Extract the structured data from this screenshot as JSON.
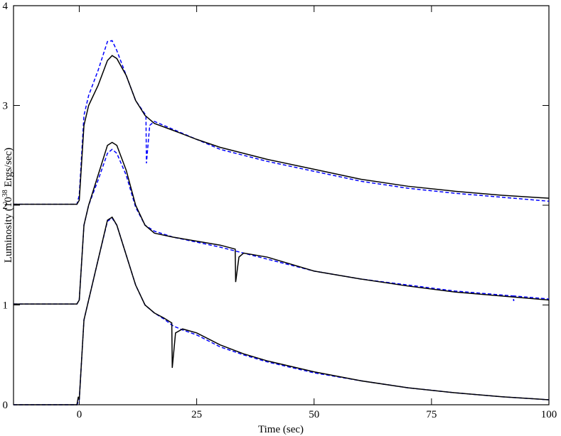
{
  "chart_data": {
    "type": "line",
    "xlabel": "Time (sec)",
    "ylabel_parts": [
      "Luminosity (10",
      "38",
      " Ergs/sec)"
    ],
    "xlim": [
      -14,
      100
    ],
    "ylim": [
      0,
      4
    ],
    "xticks": [
      0,
      25,
      50,
      75,
      100
    ],
    "yticks": [
      0,
      1,
      2,
      3,
      4
    ],
    "series": [
      {
        "color": "#0000ff",
        "dash": true,
        "x": [
          -14,
          -0.5,
          0,
          1,
          2,
          4,
          6,
          7,
          8,
          10,
          12,
          14,
          16,
          18,
          20,
          22,
          25,
          30,
          35,
          40,
          50,
          60,
          70,
          80,
          90,
          100
        ],
        "values": [
          0,
          0,
          0.05,
          0.85,
          1.05,
          1.45,
          1.84,
          1.87,
          1.8,
          1.5,
          1.2,
          1.0,
          0.92,
          0.86,
          0.79,
          0.75,
          0.7,
          0.58,
          0.5,
          0.43,
          0.32,
          0.24,
          0.17,
          0.12,
          0.08,
          0.05
        ]
      },
      {
        "color": "#000000",
        "dash": false,
        "x": [
          -14,
          -0.5,
          -0.2,
          0,
          1,
          2,
          4,
          6,
          7,
          8,
          10,
          12,
          14,
          16,
          18,
          19.7,
          19.8,
          20.5,
          22,
          25,
          30,
          35,
          40,
          50,
          60,
          70,
          80,
          90,
          100
        ],
        "values": [
          0,
          0,
          0.08,
          0.05,
          0.85,
          1.05,
          1.45,
          1.85,
          1.88,
          1.8,
          1.5,
          1.2,
          1.0,
          0.92,
          0.87,
          0.82,
          0.37,
          0.72,
          0.76,
          0.72,
          0.6,
          0.51,
          0.44,
          0.33,
          0.24,
          0.17,
          0.12,
          0.08,
          0.05
        ]
      },
      {
        "color": "#0000ff",
        "dash": true,
        "x": [
          -14,
          -0.5,
          0,
          1,
          2,
          4,
          6,
          7,
          8,
          10,
          12,
          14,
          16,
          20,
          25,
          30,
          35,
          40,
          50,
          60,
          70,
          80,
          90,
          92.4,
          92.5,
          92.6,
          100
        ],
        "values": [
          1.01,
          1.01,
          1.05,
          1.8,
          2.0,
          2.25,
          2.52,
          2.56,
          2.52,
          2.3,
          1.98,
          1.8,
          1.74,
          1.68,
          1.63,
          1.58,
          1.52,
          1.46,
          1.34,
          1.26,
          1.2,
          1.14,
          1.1,
          1.09,
          1.04,
          1.09,
          1.06
        ]
      },
      {
        "color": "#000000",
        "dash": false,
        "x": [
          -14,
          -0.5,
          0,
          1,
          2,
          4,
          6,
          7,
          8,
          10,
          12,
          14,
          16,
          20,
          25,
          30,
          33.2,
          33.3,
          34,
          35,
          40,
          50,
          60,
          70,
          80,
          90,
          100
        ],
        "values": [
          1.01,
          1.01,
          1.05,
          1.8,
          2.0,
          2.3,
          2.6,
          2.63,
          2.6,
          2.35,
          2.0,
          1.8,
          1.72,
          1.68,
          1.64,
          1.6,
          1.56,
          1.23,
          1.48,
          1.52,
          1.48,
          1.34,
          1.26,
          1.19,
          1.13,
          1.09,
          1.05
        ]
      },
      {
        "color": "#0000ff",
        "dash": true,
        "x": [
          -14,
          -0.5,
          0,
          1,
          2,
          4,
          6,
          7,
          8,
          10,
          12,
          14.2,
          14.3,
          15,
          16,
          20,
          25,
          30,
          40,
          50,
          60,
          70,
          80,
          90,
          100
        ],
        "values": [
          2.01,
          2.01,
          2.1,
          2.9,
          3.1,
          3.35,
          3.64,
          3.65,
          3.55,
          3.3,
          3.05,
          2.9,
          2.42,
          2.8,
          2.84,
          2.76,
          2.66,
          2.56,
          2.44,
          2.34,
          2.24,
          2.17,
          2.12,
          2.08,
          2.04
        ]
      },
      {
        "color": "#000000",
        "dash": false,
        "x": [
          -14,
          -0.5,
          0,
          1,
          2,
          4,
          6,
          7,
          8,
          10,
          12,
          14,
          16,
          20,
          25,
          30,
          40,
          50,
          60,
          70,
          80,
          90,
          100
        ],
        "values": [
          2.01,
          2.01,
          2.05,
          2.8,
          3.0,
          3.2,
          3.45,
          3.5,
          3.47,
          3.3,
          3.05,
          2.9,
          2.82,
          2.75,
          2.66,
          2.58,
          2.46,
          2.36,
          2.26,
          2.19,
          2.14,
          2.1,
          2.07
        ]
      }
    ]
  }
}
